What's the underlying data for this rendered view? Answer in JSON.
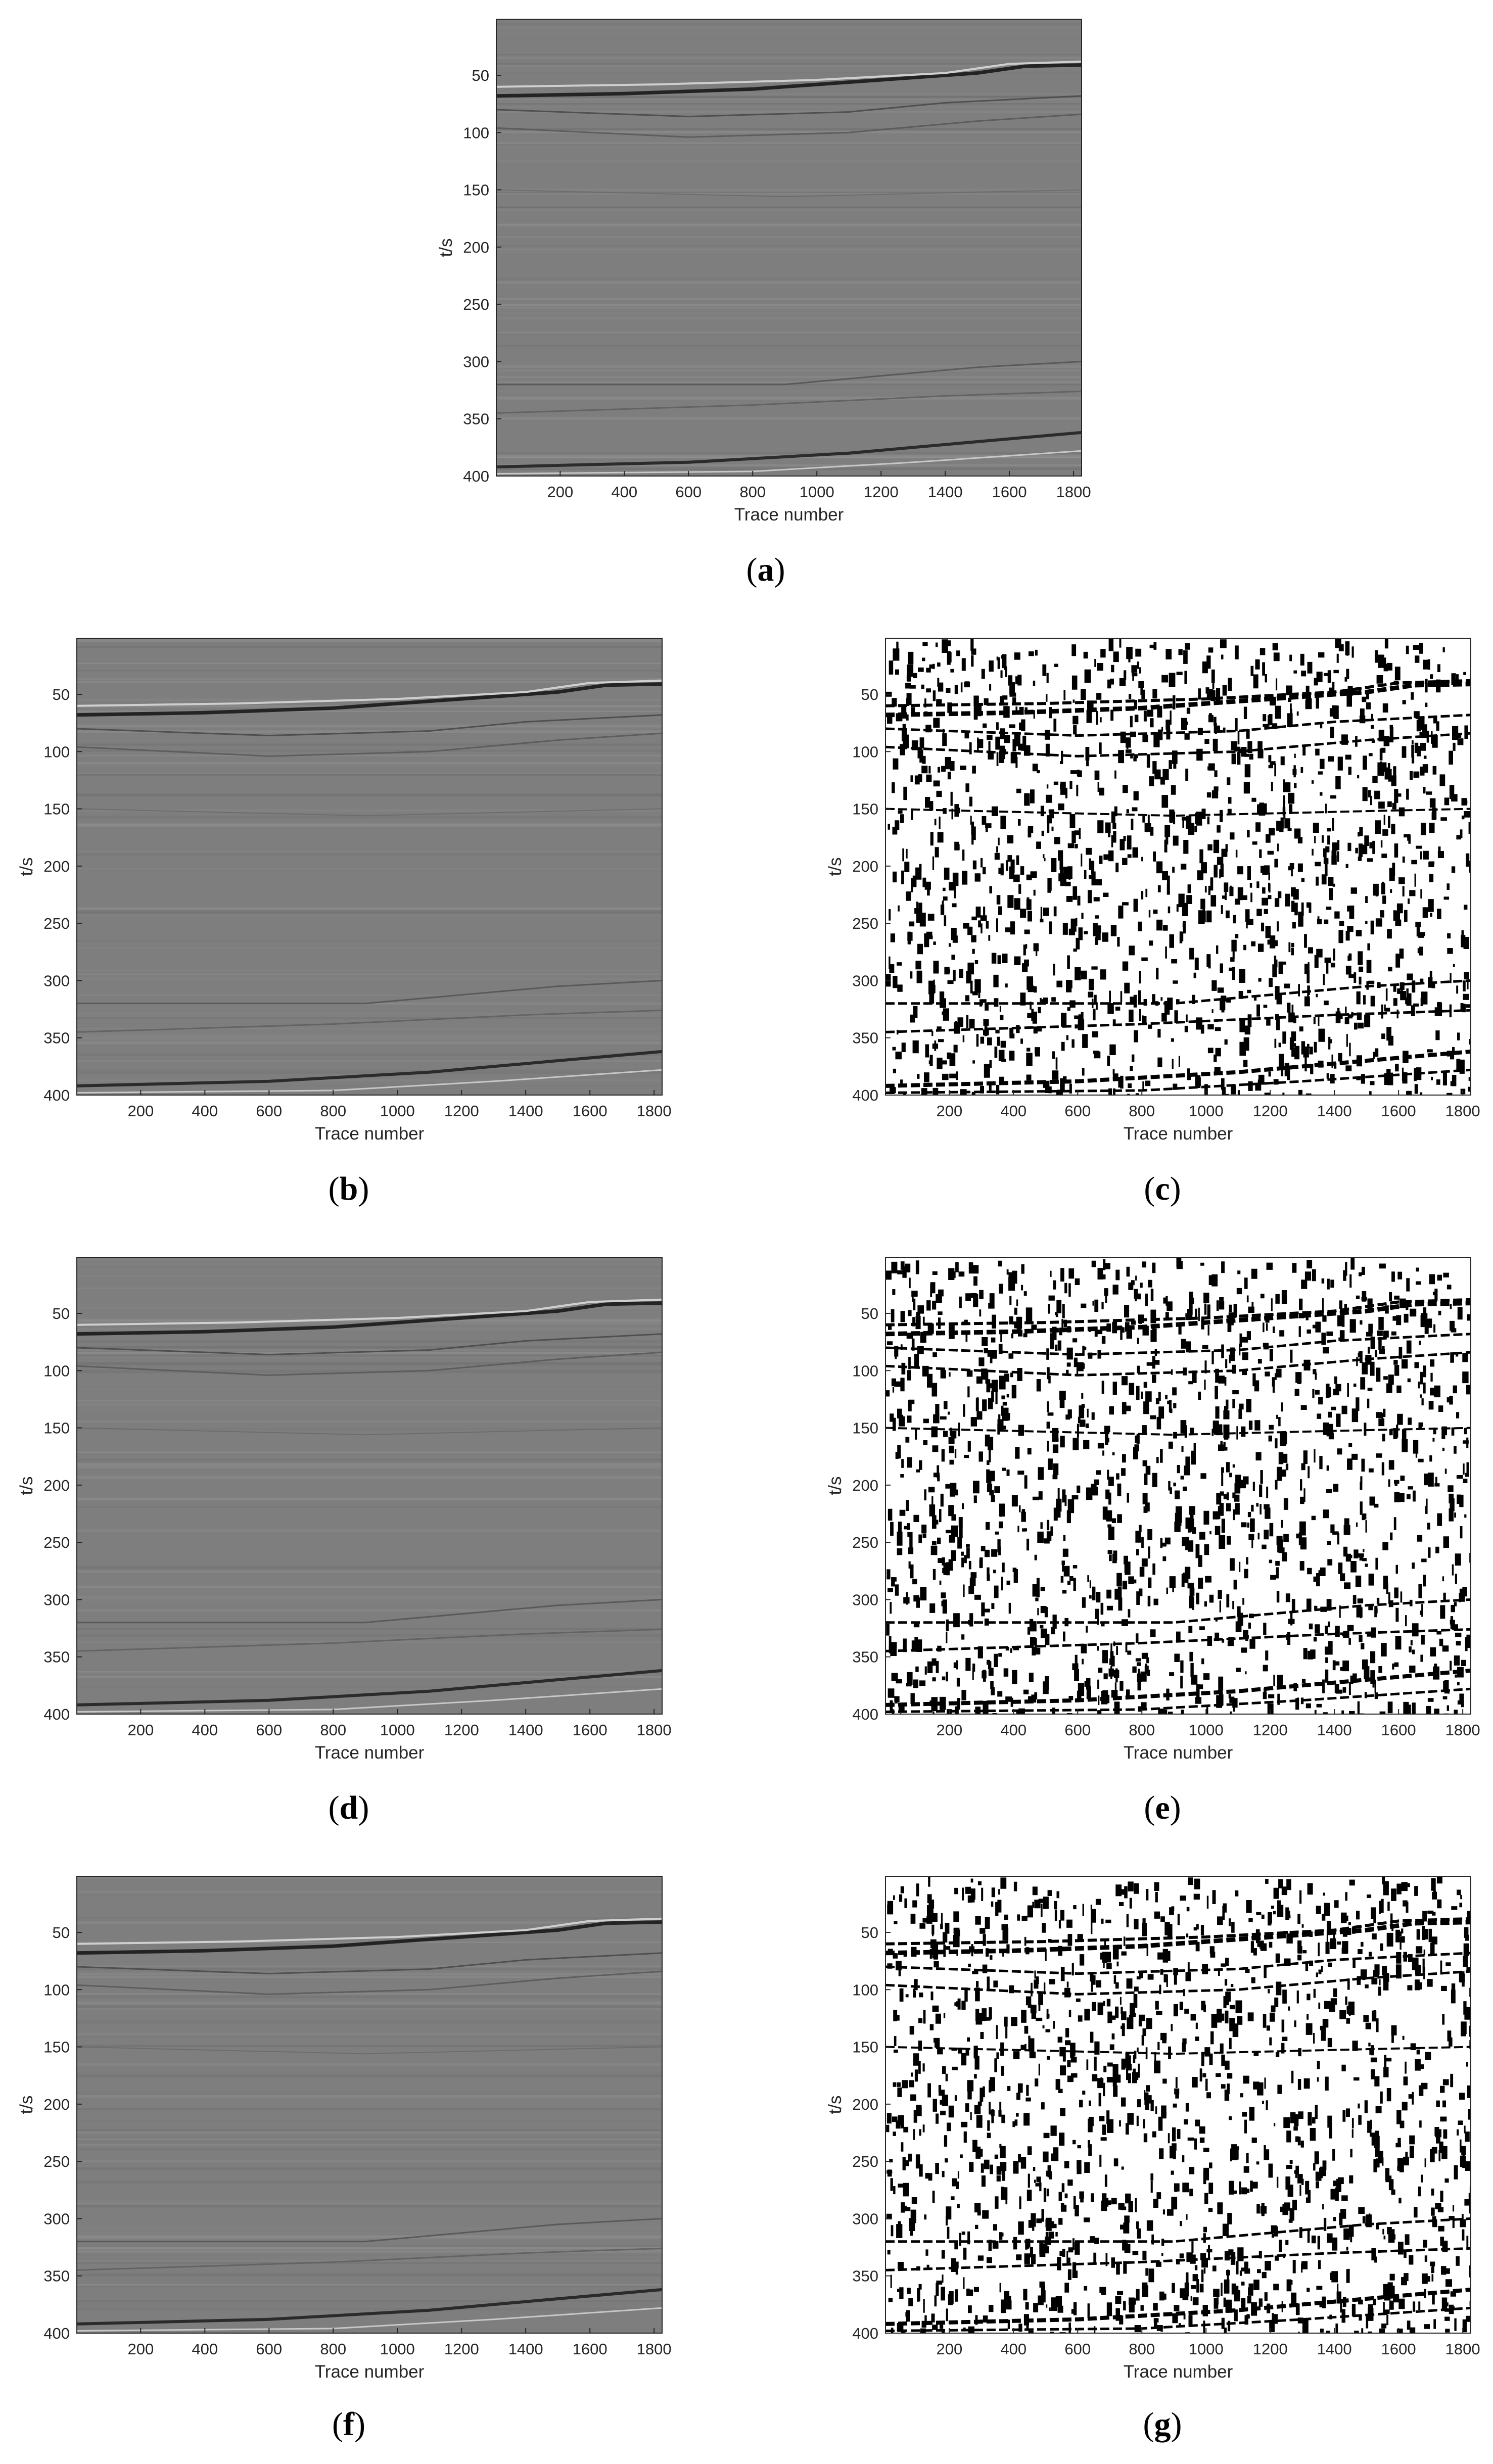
{
  "chart_data": [
    {
      "id": "a",
      "type": "heatmap",
      "caption": "a",
      "style": "gray",
      "xlabel": "Trace number",
      "ylabel": "t/s",
      "xlim": [
        1,
        1825
      ],
      "ylim": [
        400,
        1
      ],
      "xticks": [
        200,
        400,
        600,
        800,
        1000,
        1200,
        1400,
        1600,
        1800
      ],
      "yticks": [
        50,
        100,
        150,
        200,
        250,
        300,
        350,
        400
      ],
      "colormap": [
        "#000000",
        "#ffffff"
      ]
    },
    {
      "id": "b",
      "type": "heatmap",
      "caption": "b",
      "style": "gray",
      "xlabel": "Trace number",
      "ylabel": "t/s",
      "xlim": [
        1,
        1825
      ],
      "ylim": [
        400,
        1
      ],
      "xticks": [
        200,
        400,
        600,
        800,
        1000,
        1200,
        1400,
        1600,
        1800
      ],
      "yticks": [
        50,
        100,
        150,
        200,
        250,
        300,
        350,
        400
      ],
      "colormap": [
        "#000000",
        "#ffffff"
      ]
    },
    {
      "id": "c",
      "type": "heatmap",
      "caption": "c",
      "style": "binary",
      "xlabel": "Trace number",
      "ylabel": "t/s",
      "xlim": [
        1,
        1825
      ],
      "ylim": [
        400,
        1
      ],
      "xticks": [
        200,
        400,
        600,
        800,
        1000,
        1200,
        1400,
        1600,
        1800
      ],
      "yticks": [
        50,
        100,
        150,
        200,
        250,
        300,
        350,
        400
      ],
      "colormap": [
        "#000000",
        "#ffffff"
      ]
    },
    {
      "id": "d",
      "type": "heatmap",
      "caption": "d",
      "style": "gray",
      "xlabel": "Trace number",
      "ylabel": "t/s",
      "xlim": [
        1,
        1825
      ],
      "ylim": [
        400,
        1
      ],
      "xticks": [
        200,
        400,
        600,
        800,
        1000,
        1200,
        1400,
        1600,
        1800
      ],
      "yticks": [
        50,
        100,
        150,
        200,
        250,
        300,
        350,
        400
      ],
      "colormap": [
        "#000000",
        "#ffffff"
      ]
    },
    {
      "id": "e",
      "type": "heatmap",
      "caption": "e",
      "style": "binary",
      "xlabel": "Trace number",
      "ylabel": "t/s",
      "xlim": [
        1,
        1825
      ],
      "ylim": [
        400,
        1
      ],
      "xticks": [
        200,
        400,
        600,
        800,
        1000,
        1200,
        1400,
        1600,
        1800
      ],
      "yticks": [
        50,
        100,
        150,
        200,
        250,
        300,
        350,
        400
      ],
      "colormap": [
        "#000000",
        "#ffffff"
      ]
    },
    {
      "id": "f",
      "type": "heatmap",
      "caption": "f",
      "style": "gray",
      "xlabel": "Trace number",
      "ylabel": "t/s",
      "xlim": [
        1,
        1825
      ],
      "ylim": [
        400,
        1
      ],
      "xticks": [
        200,
        400,
        600,
        800,
        1000,
        1200,
        1400,
        1600,
        1800
      ],
      "yticks": [
        50,
        100,
        150,
        200,
        250,
        300,
        350,
        400
      ],
      "colormap": [
        "#000000",
        "#ffffff"
      ]
    },
    {
      "id": "g",
      "type": "heatmap",
      "caption": "g",
      "style": "binary",
      "xlabel": "Trace number",
      "ylabel": "t/s",
      "xlim": [
        1,
        1825
      ],
      "ylim": [
        400,
        1
      ],
      "xticks": [
        200,
        400,
        600,
        800,
        1000,
        1200,
        1400,
        1600,
        1800
      ],
      "yticks": [
        50,
        100,
        150,
        200,
        250,
        300,
        350,
        400
      ],
      "colormap": [
        "#000000",
        "#ffffff"
      ]
    }
  ]
}
